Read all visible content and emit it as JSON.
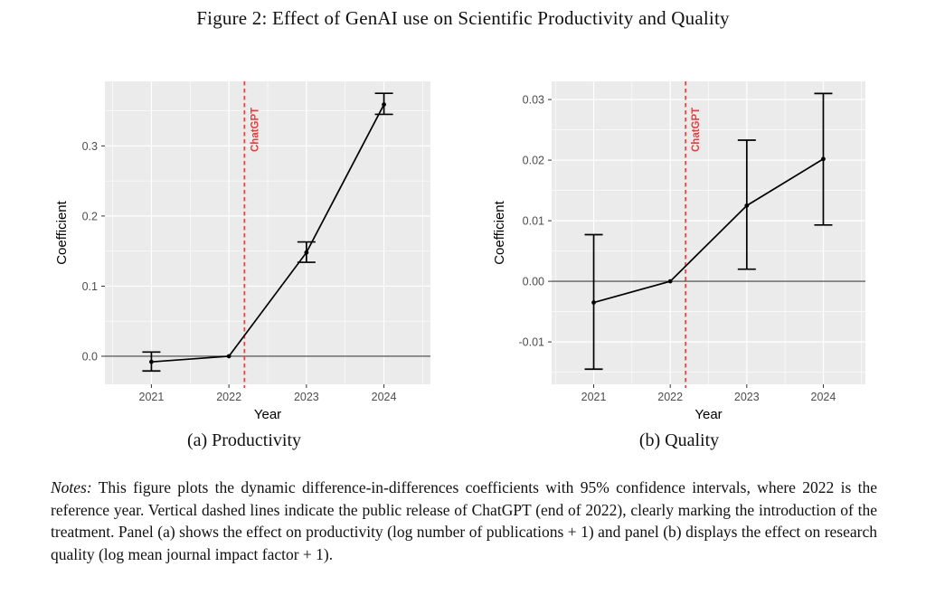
{
  "figure": {
    "title": "Figure 2: Effect of GenAI use on Scientific Productivity and Quality",
    "notes_label": "Notes:",
    "notes_text": "This figure plots the dynamic difference-in-differences coefficients with 95% confidence intervals, where 2022 is the reference year. Vertical dashed lines indicate the public release of ChatGPT (end of 2022), clearly marking the introduction of the treatment. Panel (a) shows the effect on productivity (log number of publications + 1) and panel (b) displays the effect on research quality (log mean journal impact factor + 1)."
  },
  "colors": {
    "panel_bg": "#ebebeb",
    "grid": "#ffffff",
    "accent_red": "#ee3b3b",
    "axis_text": "#4d4d4d",
    "axis_title": "#000000",
    "ref_line": "#3f3f3f",
    "series": "#000000",
    "tick_mark": "#333333"
  },
  "chart_data": [
    {
      "type": "line",
      "panel": "a",
      "caption": "(a) Productivity",
      "xlabel": "Year",
      "ylabel": "Coefficient",
      "x": [
        2021,
        2022,
        2023,
        2024
      ],
      "x_tick_labels": [
        "2021",
        "2022",
        "2023",
        "2024"
      ],
      "values": [
        -0.008,
        0,
        0.148,
        0.359
      ],
      "ci_low": [
        -0.021,
        null,
        0.134,
        0.345
      ],
      "ci_high": [
        0.006,
        null,
        0.163,
        0.375
      ],
      "yticks": [
        0.0,
        0.1,
        0.2,
        0.3
      ],
      "ytick_labels": [
        "0.0",
        "0.1",
        "0.2",
        "0.3"
      ],
      "ylim": [
        -0.04,
        0.392
      ],
      "xlim": [
        2020.4,
        2024.6
      ],
      "grid": true,
      "legend": "none",
      "ref_line_y": 0,
      "vline_x": 2022.2,
      "vline_label": "ChatGPT"
    },
    {
      "type": "line",
      "panel": "b",
      "caption": "(b) Quality",
      "xlabel": "Year",
      "ylabel": "Coefficient",
      "x": [
        2021,
        2022,
        2023,
        2024
      ],
      "x_tick_labels": [
        "2021",
        "2022",
        "2023",
        "2024"
      ],
      "values": [
        -0.0035,
        0,
        0.0125,
        0.0202
      ],
      "ci_low": [
        -0.0145,
        null,
        0.002,
        0.0093
      ],
      "ci_high": [
        0.0077,
        null,
        0.0233,
        0.031
      ],
      "yticks": [
        -0.01,
        0.0,
        0.01,
        0.02,
        0.03
      ],
      "ytick_labels": [
        "-0.01",
        "0.00",
        "0.01",
        "0.02",
        "0.03"
      ],
      "ylim": [
        -0.017,
        0.033
      ],
      "xlim": [
        2020.45,
        2024.55
      ],
      "grid": true,
      "legend": "none",
      "ref_line_y": 0,
      "vline_x": 2022.2,
      "vline_label": "ChatGPT"
    }
  ]
}
